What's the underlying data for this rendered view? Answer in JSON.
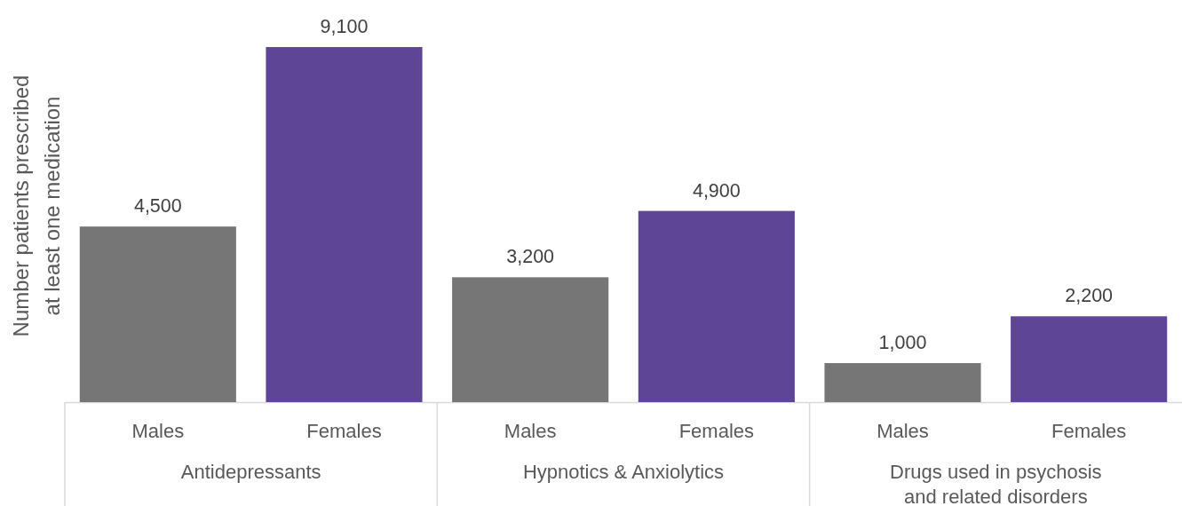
{
  "chart_data": {
    "type": "bar",
    "ylabel": "Number patients prescribed\nat least one medication",
    "categories": [
      "Antidepressants",
      "Hypnotics & Anxiolytics",
      "Drugs used in psychosis\nand related disorders"
    ],
    "series": [
      {
        "name": "Males",
        "color": "#767676",
        "values": [
          4500,
          3200,
          1000
        ],
        "value_labels": [
          "4,500",
          "3,200",
          "1,000"
        ]
      },
      {
        "name": "Females",
        "color": "#5e4596",
        "values": [
          9100,
          4900,
          2200
        ],
        "value_labels": [
          "9,100",
          "4,900",
          "2,200"
        ]
      }
    ]
  }
}
